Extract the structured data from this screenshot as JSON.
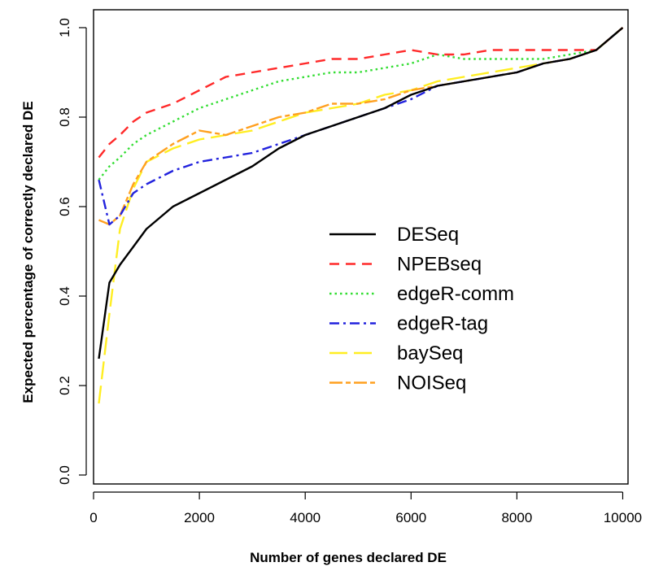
{
  "chart_data": {
    "type": "line",
    "xlabel": "Number of genes declared DE",
    "ylabel": "Expected percentage of correctly declared DE",
    "xlim": [
      0,
      10100
    ],
    "ylim": [
      -0.02,
      1.04
    ],
    "xticks": [
      0,
      2000,
      4000,
      6000,
      8000,
      10000
    ],
    "yticks": [
      0.0,
      0.2,
      0.4,
      0.6,
      0.8,
      1.0
    ],
    "ytick_labels": [
      "0.0",
      "0.2",
      "0.4",
      "0.6",
      "0.8",
      "1.0"
    ],
    "grid": false,
    "legend_position": "center-right",
    "x": [
      100,
      300,
      500,
      750,
      1000,
      1500,
      2000,
      2500,
      3000,
      3500,
      4000,
      4500,
      5000,
      5500,
      6000,
      6500,
      7000,
      7500,
      8000,
      8500,
      9000,
      9500,
      10000
    ],
    "series": [
      {
        "name": "DESeq",
        "color": "#000000",
        "dash": "solid",
        "values": [
          0.26,
          0.43,
          0.47,
          0.51,
          0.55,
          0.6,
          0.63,
          0.66,
          0.69,
          0.73,
          0.76,
          0.78,
          0.8,
          0.82,
          0.85,
          0.87,
          0.88,
          0.89,
          0.9,
          0.92,
          0.93,
          0.95,
          1.0
        ]
      },
      {
        "name": "NPEBseq",
        "color": "#ff2a2a",
        "dash": "dashed",
        "values": [
          0.71,
          0.74,
          0.76,
          0.79,
          0.81,
          0.83,
          0.86,
          0.89,
          0.9,
          0.91,
          0.92,
          0.93,
          0.93,
          0.94,
          0.95,
          0.94,
          0.94,
          0.95,
          0.95,
          0.95,
          0.95,
          0.95,
          1.0
        ]
      },
      {
        "name": "edgeR-comm",
        "color": "#33dd33",
        "dash": "dotted",
        "values": [
          0.66,
          0.69,
          0.71,
          0.74,
          0.76,
          0.79,
          0.82,
          0.84,
          0.86,
          0.88,
          0.89,
          0.9,
          0.9,
          0.91,
          0.92,
          0.94,
          0.93,
          0.93,
          0.93,
          0.93,
          0.94,
          0.95,
          1.0
        ]
      },
      {
        "name": "edgeR-tag",
        "color": "#2222dd",
        "dash": "dashdot",
        "values": [
          0.66,
          0.56,
          0.58,
          0.63,
          0.65,
          0.68,
          0.7,
          0.71,
          0.72,
          0.74,
          0.76,
          0.78,
          0.8,
          0.82,
          0.84,
          0.87,
          0.88,
          0.89,
          0.9,
          0.92,
          0.93,
          0.95,
          1.0
        ]
      },
      {
        "name": "baySeq",
        "color": "#ffee22",
        "dash": "longdash",
        "values": [
          0.16,
          0.36,
          0.55,
          0.64,
          0.7,
          0.73,
          0.75,
          0.76,
          0.77,
          0.79,
          0.81,
          0.82,
          0.83,
          0.85,
          0.86,
          0.88,
          0.89,
          0.9,
          0.91,
          0.92,
          0.93,
          0.95,
          1.0
        ]
      },
      {
        "name": "NOISeq",
        "color": "#ffa020",
        "dash": "twodash",
        "values": [
          0.57,
          0.56,
          0.58,
          0.65,
          0.7,
          0.74,
          0.77,
          0.76,
          0.78,
          0.8,
          0.81,
          0.83,
          0.83,
          0.84,
          0.86,
          0.87,
          0.88,
          0.89,
          0.9,
          0.92,
          0.93,
          0.95,
          1.0
        ]
      }
    ]
  }
}
